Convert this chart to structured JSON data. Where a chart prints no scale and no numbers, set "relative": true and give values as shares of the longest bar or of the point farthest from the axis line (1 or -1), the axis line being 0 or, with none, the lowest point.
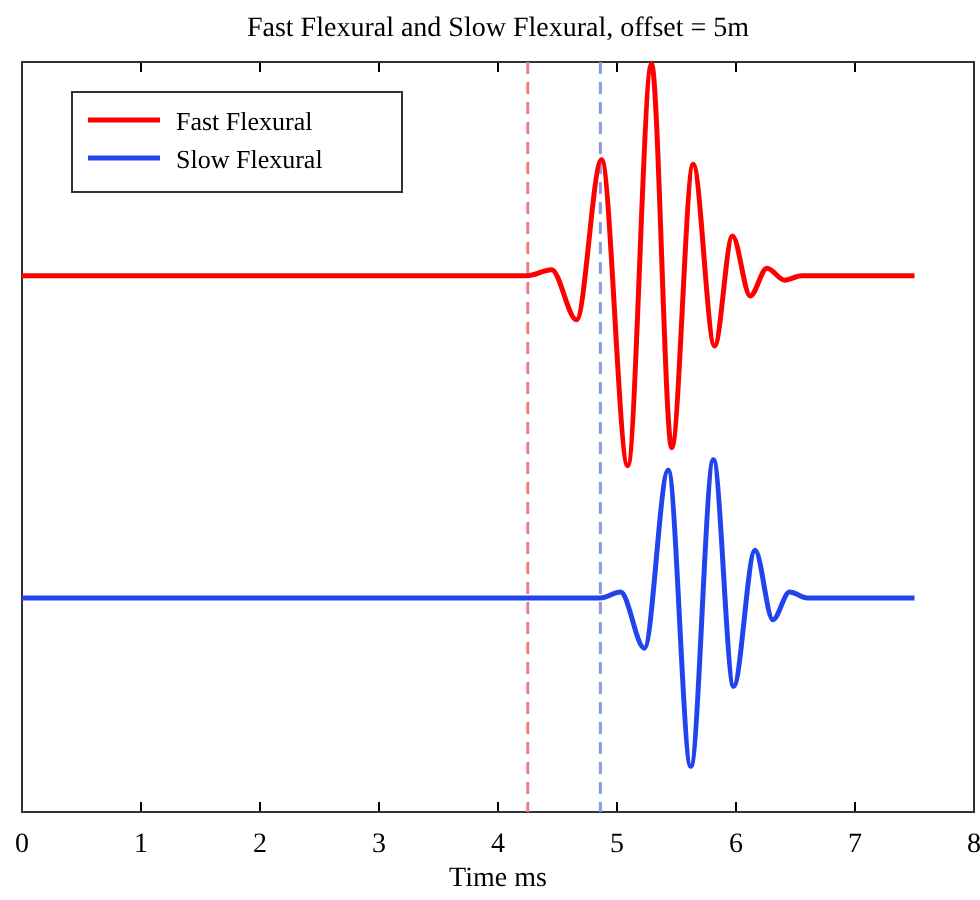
{
  "chart_data": {
    "type": "line",
    "title": "Fast Flexural and Slow Flexural, offset = 5m",
    "xlabel": "Time ms",
    "relative": true,
    "xlim": [
      0,
      8
    ],
    "xticks": [
      0,
      1,
      2,
      3,
      4,
      5,
      6,
      7,
      8
    ],
    "tick_labels": "x",
    "legend": "top left",
    "grid": false,
    "line_style": "solid",
    "marker": "none",
    "series": [
      {
        "name": "Fast Flexural",
        "color": "#ff0000",
        "x": [
          0,
          4.25,
          4.45,
          4.66,
          4.87,
          5.09,
          5.29,
          5.46,
          5.64,
          5.82,
          5.97,
          6.12,
          6.26,
          6.41,
          6.55,
          7.5
        ],
        "values": [
          0.717,
          0.717,
          0.725,
          0.658,
          0.872,
          0.463,
          1,
          0.487,
          0.866,
          0.623,
          0.77,
          0.69,
          0.727,
          0.711,
          0.717,
          0.717
        ]
      },
      {
        "name": "Slow Flexural",
        "color": "#2244ee",
        "x": [
          0,
          4.86,
          5.03,
          5.23,
          5.43,
          5.62,
          5.81,
          5.98,
          6.16,
          6.31,
          6.45,
          6.6,
          7.5
        ],
        "values": [
          0.286,
          0.286,
          0.294,
          0.219,
          0.457,
          0.061,
          0.471,
          0.168,
          0.35,
          0.257,
          0.294,
          0.286,
          0.286
        ]
      }
    ],
    "ref_lines": [
      {
        "axis": "x",
        "value": 4.25,
        "color": "#f08080",
        "line_style": "dashed"
      },
      {
        "axis": "x",
        "value": 4.86,
        "color": "#8899e0",
        "line_style": "dashed"
      }
    ]
  }
}
